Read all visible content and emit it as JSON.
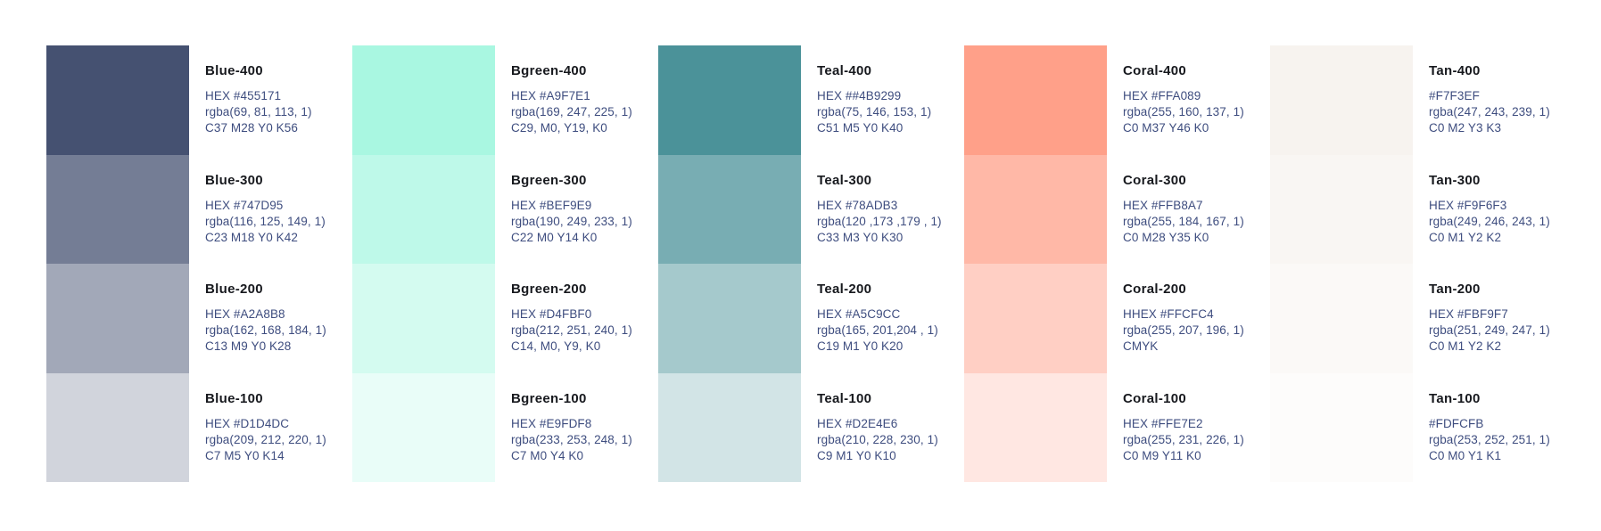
{
  "colors": {
    "background": "#FFFFFF",
    "title_text": "#17191E",
    "detail_text": "#3E4D7F"
  },
  "palette": {
    "families": [
      {
        "name": "Blue",
        "shades": [
          {
            "label": "Blue-400",
            "color": "#455171",
            "hex_line": "HEX #455171",
            "rgba_line": "rgba(69, 81, 113, 1)",
            "cmyk_line": "C37 M28 Y0 K56"
          },
          {
            "label": "Blue-300",
            "color": "#747D95",
            "hex_line": "HEX #747D95",
            "rgba_line": "rgba(116, 125, 149, 1)",
            "cmyk_line": "C23 M18 Y0 K42"
          },
          {
            "label": "Blue-200",
            "color": "#A2A8B8",
            "hex_line": "HEX #A2A8B8",
            "rgba_line": "rgba(162, 168, 184, 1)",
            "cmyk_line": "C13 M9 Y0 K28"
          },
          {
            "label": "Blue-100",
            "color": "#D1D4DC",
            "hex_line": "HEX #D1D4DC",
            "rgba_line": "rgba(209, 212, 220, 1)",
            "cmyk_line": "C7 M5 Y0 K14"
          }
        ]
      },
      {
        "name": "Bgreen",
        "shades": [
          {
            "label": "Bgreen-400",
            "color": "#A9F7E1",
            "hex_line": "HEX #A9F7E1",
            "rgba_line": "rgba(169, 247, 225, 1)",
            "cmyk_line": "C29, M0, Y19, K0"
          },
          {
            "label": "Bgreen-300",
            "color": "#BEF9E9",
            "hex_line": "HEX #BEF9E9",
            "rgba_line": "rgba(190, 249, 233, 1)",
            "cmyk_line": "C22 M0 Y14 K0"
          },
          {
            "label": "Bgreen-200",
            "color": "#D4FBF0",
            "hex_line": "HEX #D4FBF0",
            "rgba_line": "rgba(212, 251, 240, 1)",
            "cmyk_line": "C14, M0, Y9, K0"
          },
          {
            "label": "Bgreen-100",
            "color": "#E9FDF8",
            "hex_line": "HEX #E9FDF8",
            "rgba_line": "rgba(233, 253, 248, 1)",
            "cmyk_line": "C7 M0 Y4 K0"
          }
        ]
      },
      {
        "name": "Teal",
        "shades": [
          {
            "label": "Teal-400",
            "color": "#4B9299",
            "hex_line": "HEX ##4B9299",
            "rgba_line": "rgba(75, 146, 153, 1)",
            "cmyk_line": "C51 M5 Y0 K40"
          },
          {
            "label": "Teal-300",
            "color": "#78ADB3",
            "hex_line": "HEX #78ADB3",
            "rgba_line": "rgba(120 ,173 ,179 , 1)",
            "cmyk_line": "C33 M3 Y0 K30"
          },
          {
            "label": "Teal-200",
            "color": "#A5C9CC",
            "hex_line": "HEX #A5C9CC",
            "rgba_line": "rgba(165, 201,204 , 1)",
            "cmyk_line": "C19 M1 Y0 K20"
          },
          {
            "label": "Teal-100",
            "color": "#D2E4E6",
            "hex_line": "HEX #D2E4E6",
            "rgba_line": "rgba(210, 228, 230, 1)",
            "cmyk_line": "C9 M1 Y0 K10"
          }
        ]
      },
      {
        "name": "Coral",
        "shades": [
          {
            "label": "Coral-400",
            "color": "#FFA089",
            "hex_line": "HEX #FFA089",
            "rgba_line": "rgba(255, 160, 137, 1)",
            "cmyk_line": "C0 M37 Y46 K0"
          },
          {
            "label": "Coral-300",
            "color": "#FFB8A7",
            "hex_line": "HEX #FFB8A7",
            "rgba_line": "rgba(255, 184, 167, 1)",
            "cmyk_line": "C0 M28 Y35 K0"
          },
          {
            "label": "Coral-200",
            "color": "#FFCFC4",
            "hex_line": "HHEX #FFCFC4",
            "rgba_line": "rgba(255, 207, 196, 1)",
            "cmyk_line": "CMYK"
          },
          {
            "label": "Coral-100",
            "color": "#FFE7E2",
            "hex_line": "HEX #FFE7E2",
            "rgba_line": "rgba(255, 231, 226, 1)",
            "cmyk_line": "C0 M9 Y11 K0"
          }
        ]
      },
      {
        "name": "Tan",
        "shades": [
          {
            "label": "Tan-400",
            "color": "#F7F3EF",
            "hex_line": "#F7F3EF",
            "rgba_line": "rgba(247, 243, 239, 1)",
            "cmyk_line": "C0 M2 Y3 K3"
          },
          {
            "label": "Tan-300",
            "color": "#F9F6F3",
            "hex_line": "HEX #F9F6F3",
            "rgba_line": "rgba(249, 246, 243, 1)",
            "cmyk_line": "C0 M1 Y2 K2"
          },
          {
            "label": "Tan-200",
            "color": "#FBF9F7",
            "hex_line": "HEX #FBF9F7",
            "rgba_line": "rgba(251, 249, 247, 1)",
            "cmyk_line": "C0 M1 Y2 K2"
          },
          {
            "label": "Tan-100",
            "color": "#FDFCFB",
            "hex_line": "#FDFCFB",
            "rgba_line": "rgba(253, 252, 251, 1)",
            "cmyk_line": "C0 M0 Y1 K1"
          }
        ]
      }
    ]
  }
}
